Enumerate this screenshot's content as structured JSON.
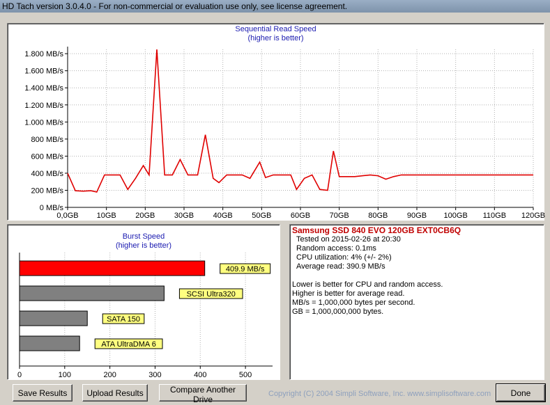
{
  "window": {
    "title": "HD Tach version 3.0.4.0  - For non-commercial or evaluation use only, see license agreement."
  },
  "sequential": {
    "title": "Sequential Read Speed",
    "subtitle": "(higher is better)"
  },
  "burst": {
    "title": "Burst Speed",
    "subtitle": "(higher is better)"
  },
  "chart_data": [
    {
      "type": "line",
      "title": "Sequential Read Speed",
      "subtitle": "(higher is better)",
      "x_unit": "GB",
      "x_ticks": [
        "0,0GB",
        "10GB",
        "20GB",
        "30GB",
        "40GB",
        "50GB",
        "60GB",
        "70GB",
        "80GB",
        "90GB",
        "100GB",
        "110GB",
        "120GB"
      ],
      "y_ticks": [
        "0 MB/s",
        "200 MB/s",
        "400 MB/s",
        "600 MB/s",
        "800 MB/s",
        "1.000 MB/s",
        "1.200 MB/s",
        "1.400 MB/s",
        "1.600 MB/s",
        "1.800 MB/s"
      ],
      "xlim": [
        0,
        120
      ],
      "ylim": [
        0,
        1850
      ],
      "grid": true,
      "color": "#e00000",
      "series": [
        {
          "x": [
            0,
            2,
            4,
            6,
            7.5,
            9.5,
            13.5,
            15.5,
            17.5,
            19.5,
            21,
            23,
            25,
            27,
            29,
            31,
            33.5,
            35.5,
            37.5,
            39,
            41,
            43,
            45,
            47,
            49.5,
            51,
            53,
            55,
            57.5,
            59,
            61,
            63,
            65,
            67,
            68.5,
            70,
            72,
            74,
            76,
            78,
            80,
            82,
            84,
            86,
            88,
            90,
            100,
            110,
            120
          ],
          "y": [
            400,
            195,
            190,
            195,
            180,
            380,
            380,
            210,
            340,
            490,
            380,
            1850,
            380,
            380,
            560,
            380,
            380,
            850,
            340,
            290,
            380,
            380,
            380,
            340,
            530,
            350,
            380,
            380,
            380,
            210,
            340,
            380,
            210,
            200,
            660,
            360,
            360,
            360,
            370,
            380,
            370,
            330,
            360,
            380,
            380,
            380,
            380,
            380,
            380
          ]
        }
      ]
    },
    {
      "type": "bar",
      "orientation": "horizontal",
      "title": "Burst Speed",
      "subtitle": "(higher is better)",
      "xlim": [
        0,
        560
      ],
      "x_ticks": [
        0,
        100,
        200,
        300,
        400,
        500
      ],
      "categories": [
        "409.9 MB/s",
        "SCSI Ultra320",
        "SATA 150",
        "ATA UltraDMA 6"
      ],
      "values": [
        409.9,
        320,
        150,
        133
      ],
      "colors": [
        "#ff0000",
        "#808080",
        "#808080",
        "#808080"
      ]
    }
  ],
  "info": {
    "drive_name": "Samsung SSD 840 EVO 120GB EXT0CB6Q",
    "tested_on": "Tested on 2015-02-26 at 20:30",
    "random_access": "Random access: 0.1ms",
    "cpu_utilization": "CPU utilization: 4% (+/- 2%)",
    "average_read": "Average read: 390.9 MB/s",
    "notes": [
      "Lower is better for CPU and random access.",
      "Higher is better for average read.",
      "MB/s = 1,000,000 bytes per second.",
      "GB = 1,000,000,000 bytes."
    ]
  },
  "buttons": {
    "save": "Save Results",
    "upload": "Upload Results",
    "compare": "Compare Another Drive",
    "done": "Done"
  },
  "copyright": "Copyright (C) 2004 Simpli Software, Inc. www.simplisoftware.com"
}
